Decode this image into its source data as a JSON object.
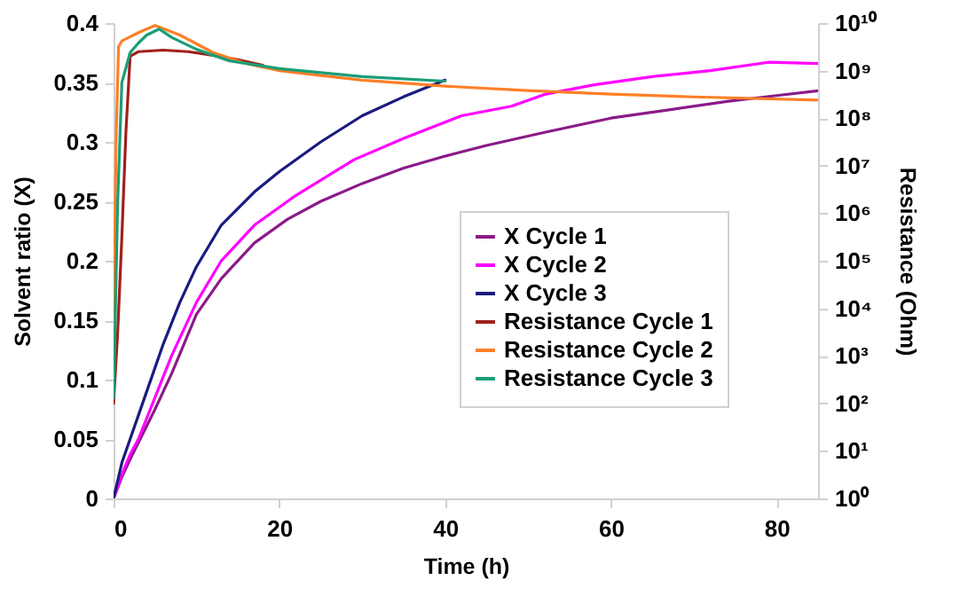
{
  "chart_data": {
    "type": "line",
    "xlabel": "Time (h)",
    "ylabel": "Solvent ratio (X)",
    "y2label": "Resistance (Ohm)",
    "xlim": [
      0,
      85
    ],
    "xticks": [
      0,
      20,
      40,
      60,
      80
    ],
    "ylim": [
      0,
      0.4
    ],
    "yticks": [
      0,
      0.05,
      0.1,
      0.15,
      0.2,
      0.25,
      0.3,
      0.35,
      0.4
    ],
    "y2lim": [
      1,
      10000000000
    ],
    "log": "y2",
    "y2ticks": [
      {
        "value": 1,
        "label": "10⁰"
      },
      {
        "value": 10,
        "label": "10¹"
      },
      {
        "value": 100,
        "label": "10²"
      },
      {
        "value": 1000,
        "label": "10³"
      },
      {
        "value": 10000,
        "label": "10⁴"
      },
      {
        "value": 100000,
        "label": "10⁵"
      },
      {
        "value": 1000000,
        "label": "10⁶"
      },
      {
        "value": 10000000,
        "label": "10⁷"
      },
      {
        "value": 100000000,
        "label": "10⁸"
      },
      {
        "value": 1000000000,
        "label": "10⁹"
      },
      {
        "value": 10000000000,
        "label": "10¹⁰"
      }
    ],
    "legend": "right",
    "grid": false,
    "series": [
      {
        "name": "X Cycle 1",
        "color": "#8b1a89",
        "x": [
          0,
          1,
          2,
          3,
          5,
          7,
          10,
          13,
          17,
          21,
          25,
          30,
          35,
          40,
          45,
          52,
          60,
          67,
          74,
          80,
          85
        ],
        "values": [
          0,
          0.018,
          0.033,
          0.047,
          0.075,
          0.105,
          0.155,
          0.185,
          0.215,
          0.235,
          0.25,
          0.265,
          0.278,
          0.288,
          0.297,
          0.308,
          0.32,
          0.327,
          0.334,
          0.339,
          0.343
        ]
      },
      {
        "name": "X Cycle 2",
        "color": "#ff00ff",
        "x": [
          0,
          1,
          2,
          3,
          5,
          7,
          10,
          13,
          17,
          22,
          29,
          35,
          42,
          48,
          52,
          58,
          65,
          72,
          79,
          85
        ],
        "values": [
          0,
          0.02,
          0.037,
          0.05,
          0.085,
          0.12,
          0.165,
          0.2,
          0.23,
          0.255,
          0.285,
          0.303,
          0.322,
          0.33,
          0.34,
          0.348,
          0.355,
          0.36,
          0.367,
          0.366
        ]
      },
      {
        "name": "X Cycle 3",
        "color": "#1a1a80",
        "x": [
          0,
          1,
          2,
          4,
          6,
          8,
          10,
          13,
          17,
          20,
          25,
          30,
          35,
          40
        ],
        "values": [
          0,
          0.03,
          0.05,
          0.09,
          0.13,
          0.165,
          0.195,
          0.23,
          0.258,
          0.275,
          0.3,
          0.322,
          0.338,
          0.352
        ]
      },
      {
        "name": "Resistance Cycle 1",
        "color": "#a0201c",
        "axis": "y2",
        "x": [
          0,
          0.5,
          1,
          1.5,
          2,
          3,
          6,
          9,
          12,
          15,
          18
        ],
        "values": [
          100,
          3200,
          320000,
          56000000,
          2000000000,
          2500000000,
          2700000000,
          2500000000,
          2100000000,
          1700000000,
          1300000000
        ]
      },
      {
        "name": "Resistance Cycle 2",
        "color": "#ff7f27",
        "axis": "y2",
        "x": [
          0,
          0.3,
          0.6,
          1,
          3,
          5,
          8,
          12,
          16,
          20,
          25,
          30,
          40,
          50,
          60,
          70,
          85
        ],
        "values": [
          5600,
          32000000,
          3200000000,
          4200000000,
          6300000000,
          8900000000,
          5600000000,
          2400000000,
          1400000000,
          1000000000,
          790000000,
          630000000,
          470000000,
          380000000,
          320000000,
          280000000,
          240000000
        ]
      },
      {
        "name": "Resistance Cycle 3",
        "color": "#1a9e77",
        "axis": "y2",
        "x": [
          0,
          0.5,
          1,
          2,
          3,
          4,
          5.5,
          7,
          10,
          14,
          20,
          30,
          40
        ],
        "values": [
          130,
          1800000,
          560000000,
          2400000000,
          3800000000,
          5600000000,
          7500000000,
          5000000000,
          2800000000,
          1600000000,
          1100000000,
          750000000,
          600000000
        ]
      }
    ]
  }
}
